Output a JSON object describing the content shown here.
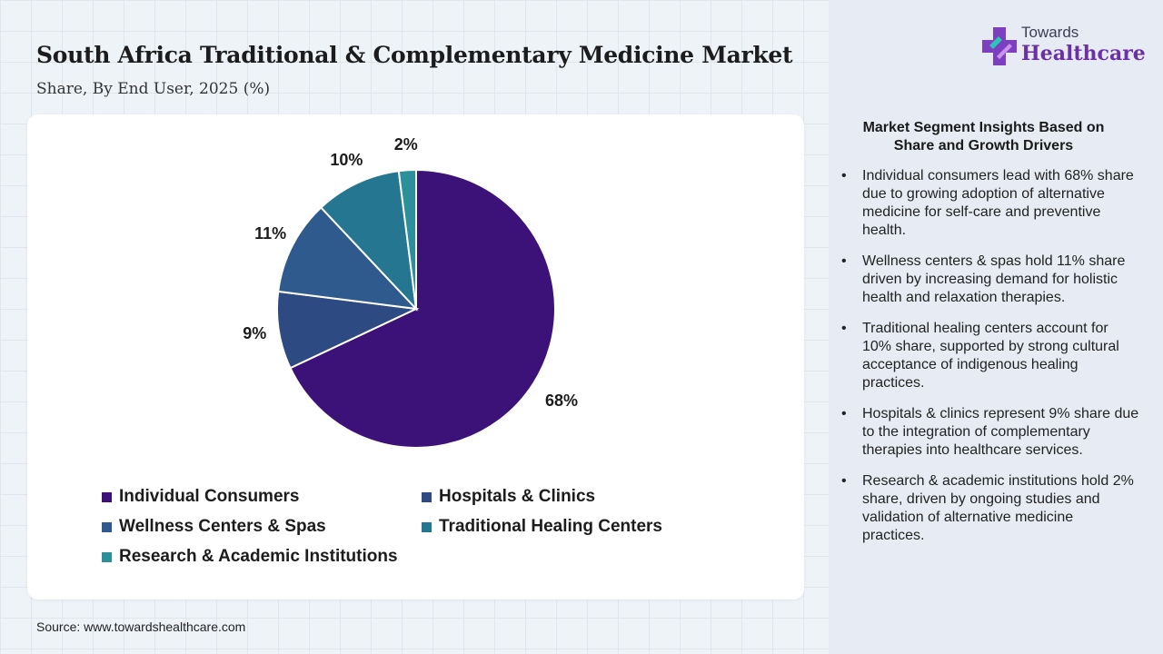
{
  "header": {
    "title": "South Africa Traditional & Complementary Medicine Market",
    "subtitle": "Share, By End User, 2025 (%)"
  },
  "logo": {
    "top": "Towards",
    "main": "Healthcare"
  },
  "chart_data": {
    "type": "pie",
    "slices": [
      {
        "label": "Individual Consumers",
        "value": 68,
        "display": "68%",
        "color": "#3d1278"
      },
      {
        "label": "Hospitals & Clinics",
        "value": 9,
        "display": "9%",
        "color": "#2d4a82"
      },
      {
        "label": "Wellness Centers & Spas",
        "value": 11,
        "display": "11%",
        "color": "#2e5a8e"
      },
      {
        "label": "Traditional Healing Centers",
        "value": 10,
        "display": "10%",
        "color": "#247691"
      },
      {
        "label": "Research & Academic Institutions",
        "value": 2,
        "display": "2%",
        "color": "#2c8f9c"
      }
    ],
    "legend_order": [
      0,
      1,
      2,
      3,
      4
    ],
    "start_angle_deg": 0,
    "direction": "clockwise",
    "legend_position": "bottom"
  },
  "insights": {
    "title": "Market Segment Insights Based on Share and Growth Drivers",
    "items": [
      "Individual consumers lead with 68% share due to growing adoption of alternative medicine for self-care and preventive health.",
      "Wellness centers & spas hold 11% share driven by increasing demand for holistic health and relaxation therapies.",
      "Traditional healing centers account for 10% share, supported by strong cultural acceptance of indigenous healing practices.",
      "Hospitals & clinics represent 9% share due to the integration of complementary therapies into healthcare services.",
      "Research & academic institutions hold 2% share, driven by ongoing studies and validation of alternative medicine practices."
    ]
  },
  "source": "Source: www.towardshealthcare.com"
}
